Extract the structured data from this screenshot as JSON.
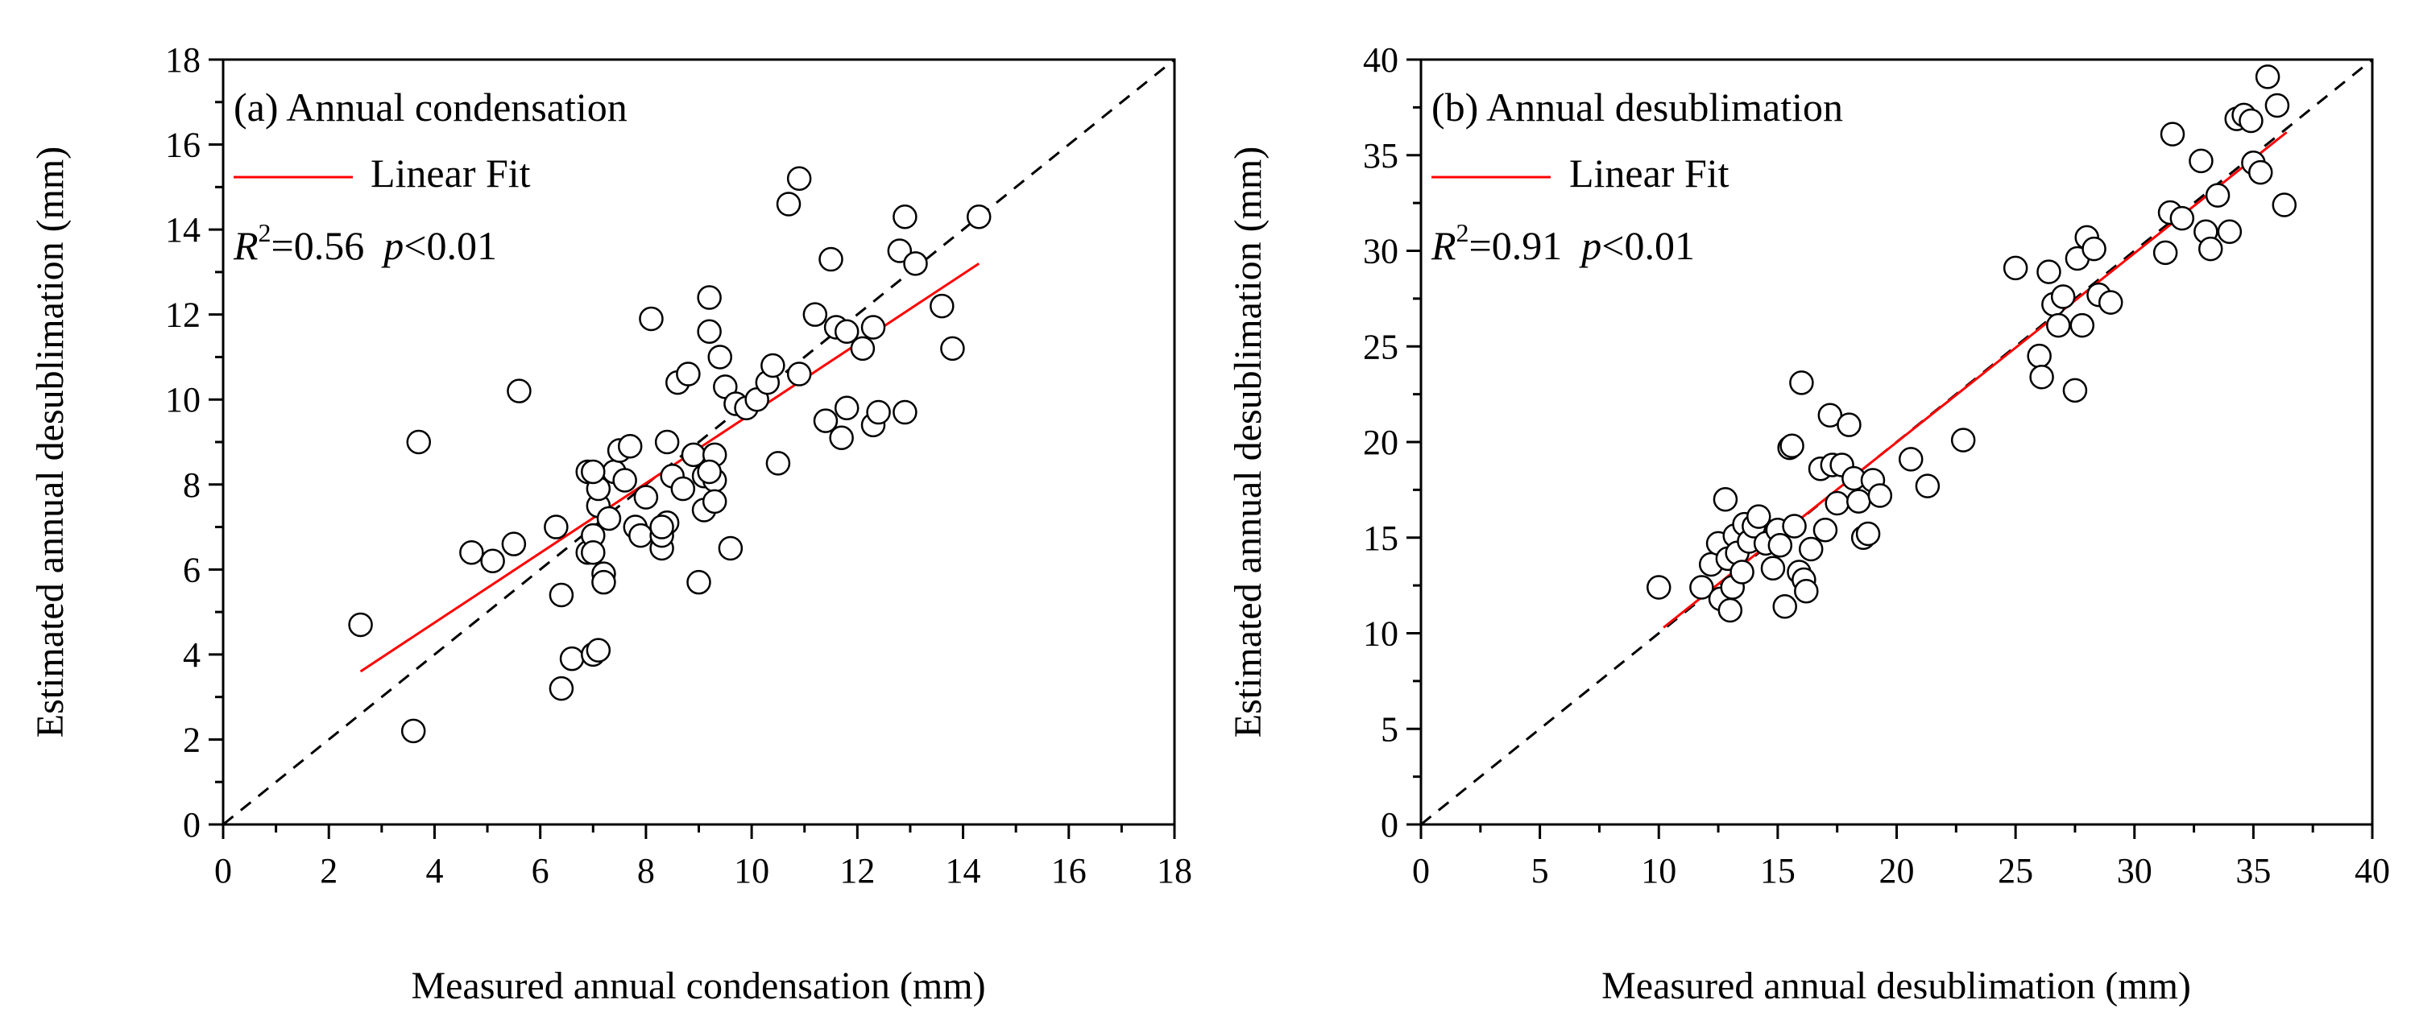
{
  "colors": {
    "fit_line": "#ff0000",
    "identity_line": "#000000",
    "marker_stroke": "#000000",
    "marker_fill": "#ffffff",
    "axis": "#000000",
    "background": "#ffffff"
  },
  "chart_data": [
    {
      "type": "scatter",
      "panel": "a",
      "title": "(a) Annual condensation",
      "legend_label": "Linear Fit",
      "stats": {
        "r2_symbol": "R",
        "r2_sup": "2",
        "r2_value": "=0.56",
        "p_symbol": "p",
        "p_value": "<0.01"
      },
      "xlabel": "Measured annual condensation (mm)",
      "ylabel": "Estimated annual desublimation (mm)",
      "xlim": [
        0,
        18
      ],
      "ylim": [
        0,
        18
      ],
      "xticks": [
        "0",
        "2",
        "4",
        "6",
        "8",
        "10",
        "12",
        "14",
        "16",
        "18"
      ],
      "yticks": [
        "0",
        "2",
        "4",
        "6",
        "8",
        "10",
        "12",
        "14",
        "16",
        "18"
      ],
      "x_tick_values": [
        0,
        2,
        4,
        6,
        8,
        10,
        12,
        14,
        16,
        18
      ],
      "y_tick_values": [
        0,
        2,
        4,
        6,
        8,
        10,
        12,
        14,
        16,
        18
      ],
      "minor_step": 1,
      "fit_line": {
        "x": [
          2.6,
          14.3
        ],
        "y": [
          3.6,
          13.2
        ]
      },
      "identity_line": {
        "x": [
          0,
          18
        ],
        "y": [
          0,
          18
        ]
      },
      "points": {
        "x": [
          2.6,
          3.6,
          3.7,
          4.7,
          5.1,
          5.5,
          5.6,
          6.3,
          6.4,
          6.4,
          6.6,
          6.9,
          6.9,
          7.0,
          7.0,
          7.0,
          7.1,
          7.1,
          7.1,
          7.2,
          7.2,
          7.3,
          7.4,
          7.5,
          7.6,
          7.7,
          7.8,
          7.9,
          8.0,
          8.1,
          8.3,
          8.3,
          8.4,
          8.4,
          8.5,
          8.6,
          8.7,
          8.8,
          8.9,
          9.0,
          9.1,
          9.1,
          9.2,
          9.2,
          9.3,
          9.3,
          9.4,
          9.5,
          9.6,
          9.7,
          9.9,
          10.1,
          10.3,
          10.4,
          10.5,
          10.7,
          10.9,
          10.9,
          11.2,
          11.4,
          11.5,
          11.6,
          11.7,
          11.8,
          11.8,
          12.1,
          12.3,
          12.3,
          12.4,
          12.8,
          12.9,
          12.9,
          13.1,
          13.6,
          13.8,
          14.3,
          7.0,
          8.3,
          9.3,
          9.2
        ],
        "y": [
          4.7,
          2.2,
          9.0,
          6.4,
          6.2,
          6.6,
          10.2,
          7.0,
          5.4,
          3.2,
          3.9,
          8.3,
          6.4,
          6.8,
          4.0,
          6.4,
          7.5,
          4.1,
          7.9,
          5.9,
          5.7,
          7.2,
          8.3,
          8.8,
          8.1,
          8.9,
          7.0,
          6.8,
          7.7,
          11.9,
          6.5,
          6.8,
          9.0,
          7.1,
          8.2,
          10.4,
          7.9,
          10.6,
          8.7,
          5.7,
          7.4,
          8.2,
          11.6,
          12.4,
          8.7,
          8.1,
          11.0,
          10.3,
          6.5,
          9.9,
          9.8,
          10.0,
          10.4,
          10.8,
          8.5,
          14.6,
          15.2,
          10.6,
          12.0,
          9.5,
          13.3,
          11.7,
          9.1,
          9.8,
          11.6,
          11.2,
          11.7,
          9.4,
          9.7,
          13.5,
          14.3,
          9.7,
          13.2,
          12.2,
          11.2,
          14.3,
          8.3,
          7.0,
          7.6,
          8.3
        ]
      }
    },
    {
      "type": "scatter",
      "panel": "b",
      "title": "(b) Annual desublimation",
      "legend_label": "Linear Fit",
      "stats": {
        "r2_symbol": "R",
        "r2_sup": "2",
        "r2_value": "=0.91",
        "p_symbol": "p",
        "p_value": "<0.01"
      },
      "xlabel": "Measured annual desublimation (mm)",
      "ylabel": "Estimated annual desublimation (mm)",
      "xlim": [
        0,
        40
      ],
      "ylim": [
        0,
        40
      ],
      "xticks": [
        "0",
        "5",
        "10",
        "15",
        "20",
        "25",
        "30",
        "35",
        "40"
      ],
      "yticks": [
        "0",
        "5",
        "10",
        "15",
        "20",
        "25",
        "30",
        "35",
        "40"
      ],
      "x_tick_values": [
        0,
        5,
        10,
        15,
        20,
        25,
        30,
        35,
        40
      ],
      "y_tick_values": [
        0,
        5,
        10,
        15,
        20,
        25,
        30,
        35,
        40
      ],
      "minor_step": 2.5,
      "fit_line": {
        "x": [
          10.2,
          36.4
        ],
        "y": [
          10.3,
          36.2
        ]
      },
      "identity_line": {
        "x": [
          0,
          40
        ],
        "y": [
          0,
          40
        ]
      },
      "points": {
        "x": [
          10.0,
          11.8,
          12.2,
          12.5,
          12.6,
          12.8,
          12.9,
          13.0,
          13.1,
          13.2,
          13.3,
          13.5,
          13.6,
          13.8,
          14.0,
          14.2,
          14.5,
          14.8,
          15.0,
          15.1,
          15.3,
          15.5,
          15.6,
          15.7,
          15.9,
          16.0,
          16.1,
          16.2,
          16.4,
          16.8,
          17.0,
          17.2,
          17.3,
          17.5,
          17.7,
          18.0,
          18.2,
          18.4,
          18.6,
          18.8,
          19.0,
          19.3,
          20.6,
          21.3,
          22.8,
          25.0,
          26.0,
          26.1,
          26.4,
          26.6,
          26.8,
          27.0,
          27.5,
          27.6,
          27.8,
          28.0,
          28.3,
          28.5,
          29.0,
          31.3,
          31.5,
          31.6,
          32.0,
          32.8,
          33.0,
          33.2,
          33.5,
          34.0,
          34.3,
          34.6,
          34.9,
          35.0,
          35.3,
          35.6,
          36.0,
          36.3
        ],
        "y": [
          12.4,
          12.4,
          13.6,
          14.7,
          11.8,
          17.0,
          13.9,
          11.2,
          12.4,
          15.1,
          14.2,
          13.2,
          15.7,
          14.8,
          15.6,
          16.1,
          14.7,
          13.4,
          15.4,
          14.6,
          11.4,
          19.7,
          19.8,
          15.6,
          13.2,
          23.1,
          12.8,
          12.2,
          14.4,
          18.6,
          15.4,
          21.4,
          18.8,
          16.8,
          18.8,
          20.9,
          18.1,
          16.9,
          15.0,
          15.2,
          18.0,
          17.2,
          19.1,
          17.7,
          20.1,
          29.1,
          24.5,
          23.4,
          28.9,
          27.2,
          26.1,
          27.6,
          22.7,
          29.6,
          26.1,
          30.7,
          30.1,
          27.7,
          27.3,
          29.9,
          32.0,
          36.1,
          31.7,
          34.7,
          31.0,
          30.1,
          32.9,
          31.0,
          36.9,
          37.1,
          36.8,
          34.6,
          34.1,
          39.1,
          37.6,
          32.4
        ]
      }
    }
  ]
}
